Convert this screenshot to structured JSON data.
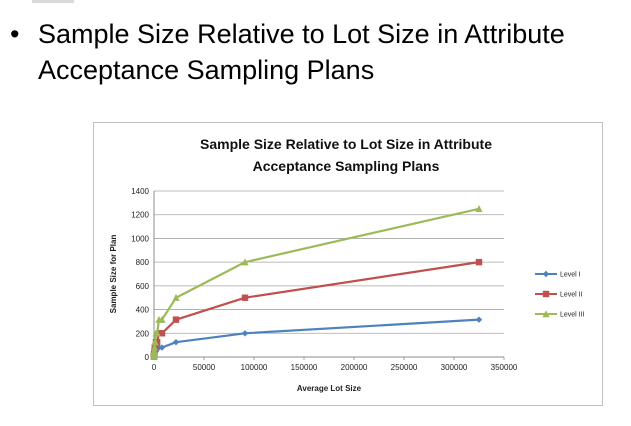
{
  "slide": {
    "bullet_symbol": "•",
    "bullet_text": "Sample Size Relative to Lot Size in Attribute Acceptance Sampling Plans"
  },
  "chart_data": {
    "type": "line",
    "title_lines": [
      "Sample Size Relative to Lot Size in Attribute",
      "Acceptance Sampling Plans"
    ],
    "xlabel": "Average Lot Size",
    "ylabel": "Sample Size for Plan",
    "xlim": [
      0,
      350000
    ],
    "ylim": [
      0,
      1400
    ],
    "xticks": [
      0,
      50000,
      100000,
      150000,
      200000,
      250000,
      300000,
      350000
    ],
    "yticks": [
      0,
      200,
      400,
      600,
      800,
      1000,
      1200,
      1400
    ],
    "grid": "horizontal",
    "legend_position": "right",
    "series": [
      {
        "name": "Level I",
        "color": "#4f81bd",
        "marker": "diamond",
        "x": [
          5,
          12,
          20,
          32,
          50,
          80,
          125,
          200,
          315,
          500,
          800,
          1250,
          2000,
          3150,
          5000,
          8000,
          22000,
          91000,
          325000
        ],
        "y": [
          2,
          3,
          5,
          5,
          5,
          8,
          13,
          20,
          20,
          32,
          32,
          50,
          50,
          80,
          80,
          80,
          125,
          200,
          315
        ]
      },
      {
        "name": "Level II",
        "color": "#c0504d",
        "marker": "square",
        "x": [
          5,
          12,
          20,
          32,
          50,
          80,
          125,
          200,
          315,
          500,
          800,
          1250,
          2000,
          3150,
          5000,
          8000,
          22000,
          91000,
          325000
        ],
        "y": [
          2,
          3,
          5,
          8,
          8,
          13,
          20,
          32,
          32,
          50,
          80,
          80,
          125,
          125,
          200,
          200,
          315,
          500,
          800
        ]
      },
      {
        "name": "Level III",
        "color": "#9bbb59",
        "marker": "triangle",
        "x": [
          5,
          12,
          20,
          32,
          50,
          80,
          125,
          200,
          315,
          500,
          800,
          1250,
          2000,
          3150,
          5000,
          8000,
          22000,
          91000,
          325000
        ],
        "y": [
          3,
          5,
          8,
          13,
          13,
          20,
          32,
          50,
          50,
          80,
          125,
          125,
          200,
          200,
          315,
          315,
          500,
          800,
          1250
        ]
      }
    ]
  }
}
